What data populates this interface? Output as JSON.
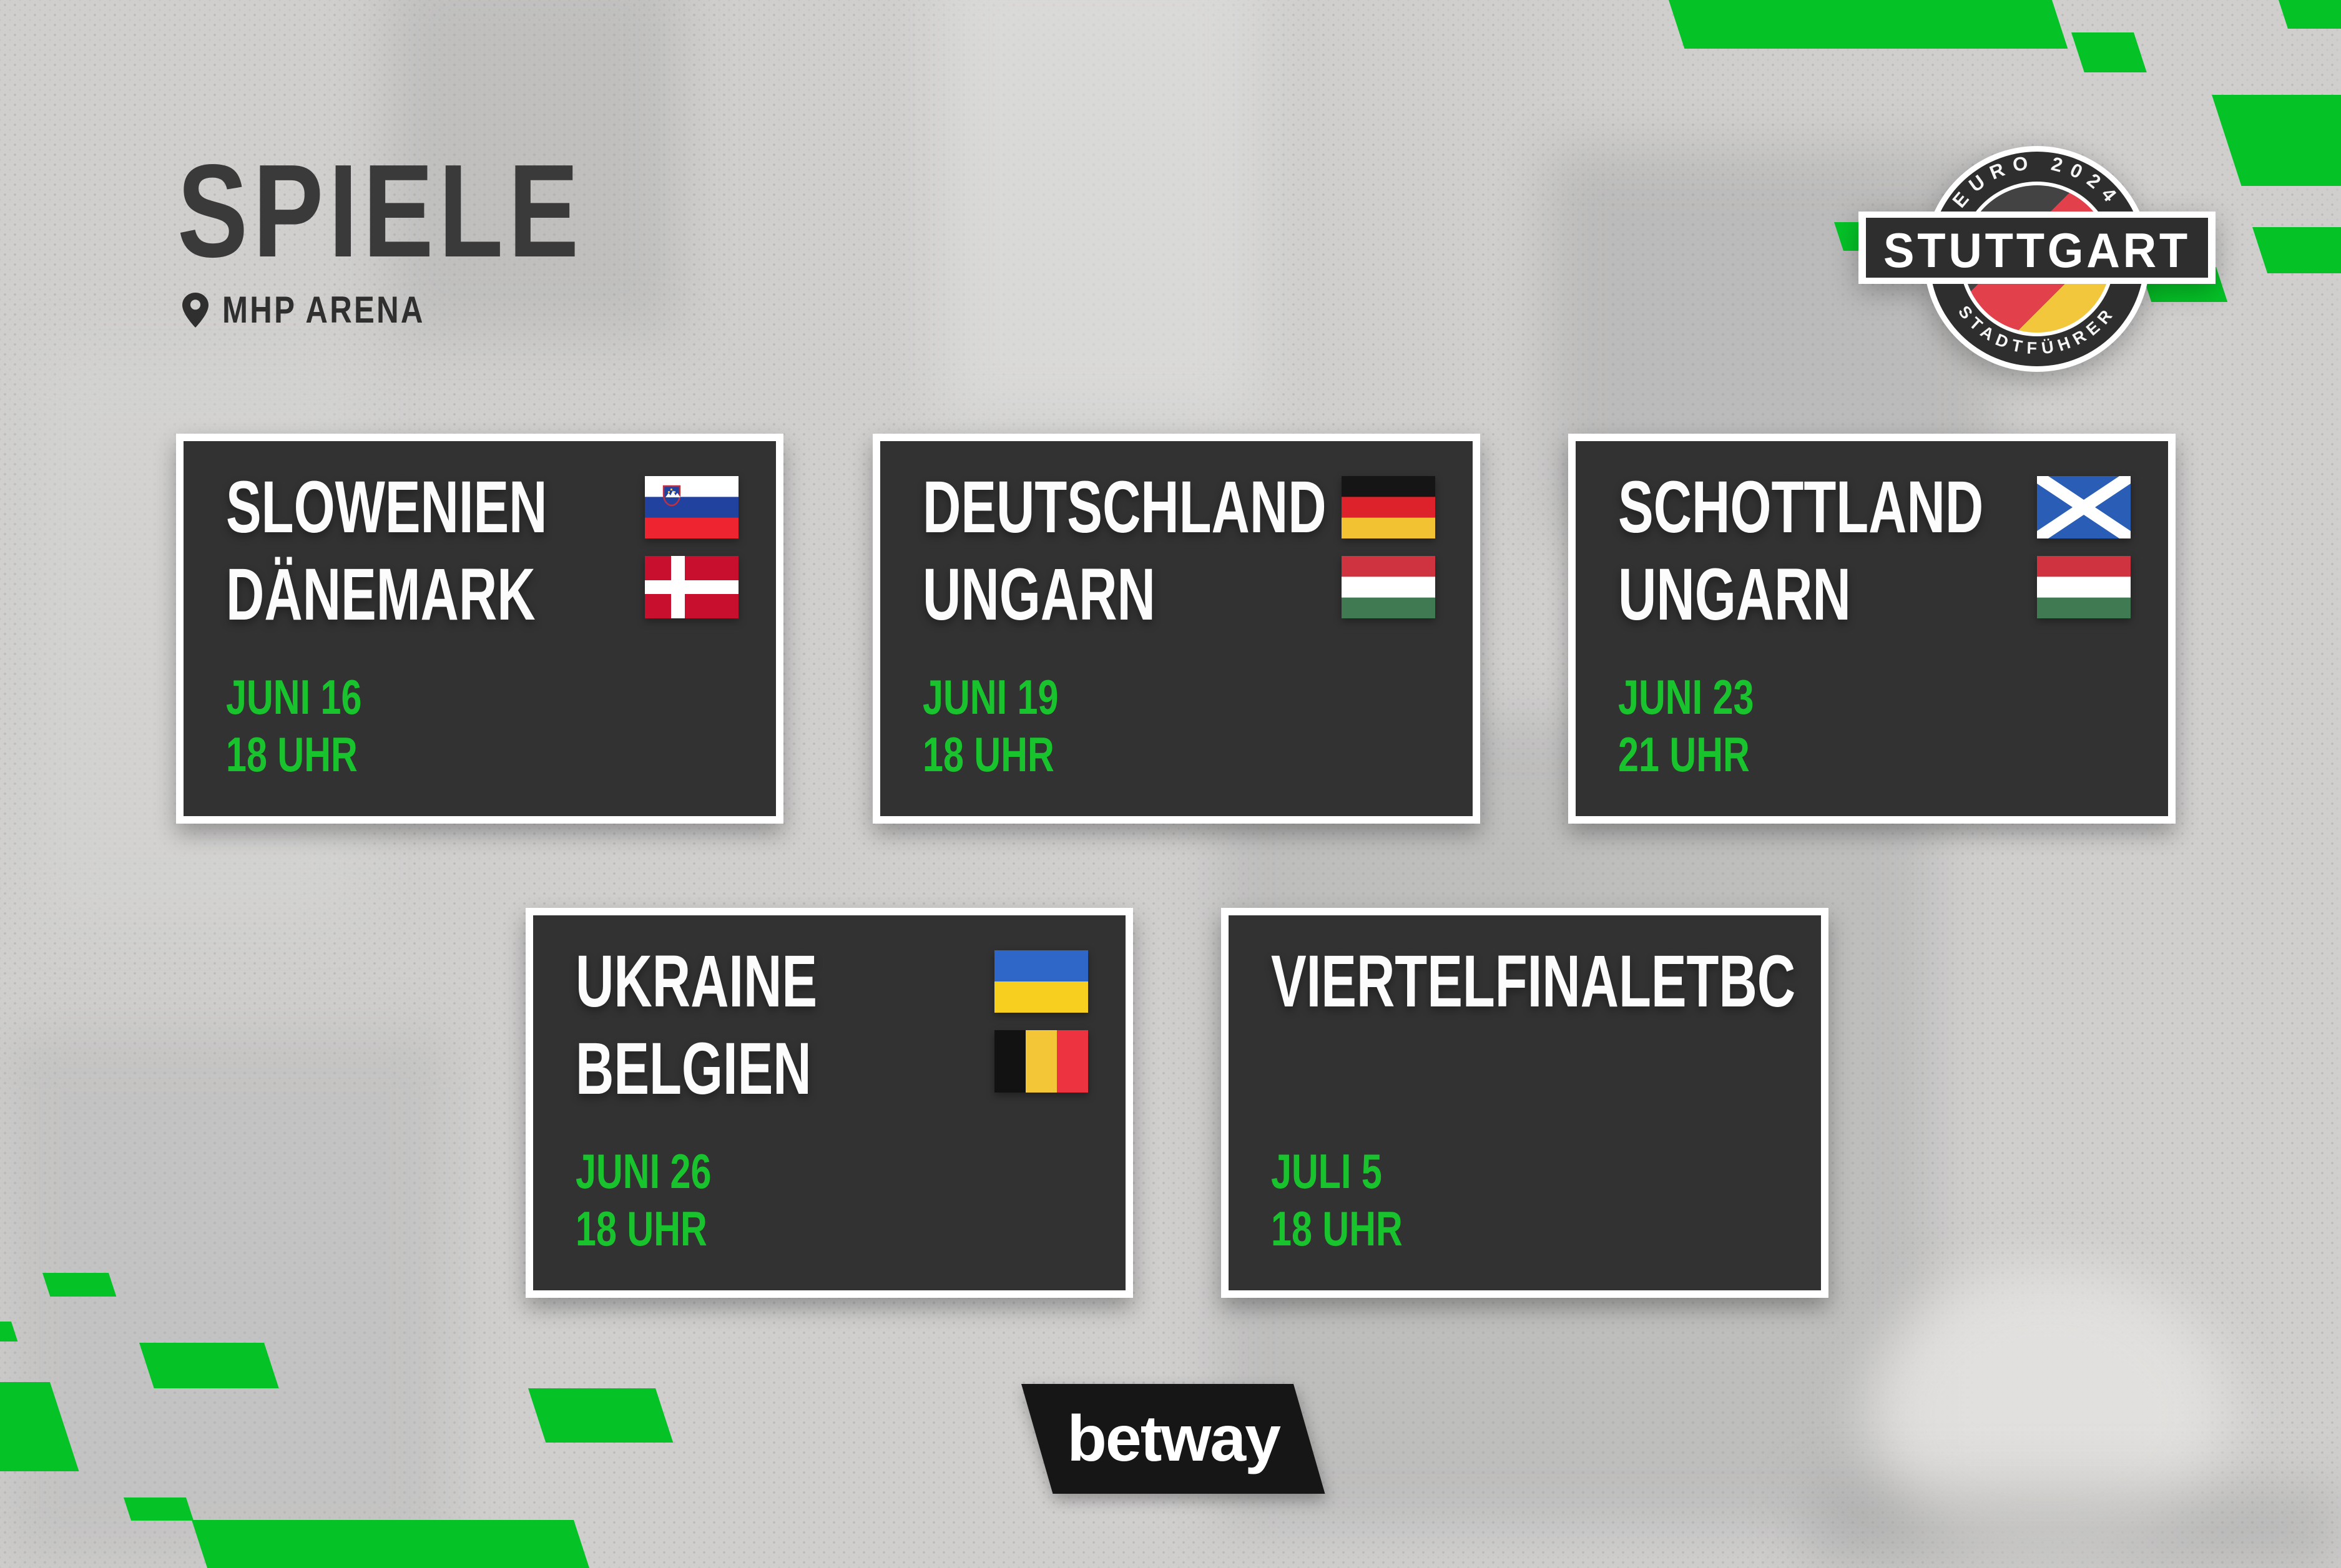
{
  "header": {
    "title": "SPIELE",
    "venue": "MHP ARENA"
  },
  "badge": {
    "arc_top": "EURO 2024",
    "city": "STUTTGART",
    "arc_bottom": "STADTFÜHRER"
  },
  "matches": [
    {
      "home": "SLOWENIEN",
      "away": "DÄNEMARK",
      "home_flag": "slovenia",
      "away_flag": "denmark",
      "date": "JUNI 16",
      "time": "18 UHR"
    },
    {
      "home": "DEUTSCHLAND",
      "away": "UNGARN",
      "home_flag": "germany",
      "away_flag": "hungary",
      "date": "JUNI 19",
      "time": "18 UHR"
    },
    {
      "home": "SCHOTTLAND",
      "away": "UNGARN",
      "home_flag": "scotland",
      "away_flag": "hungary",
      "date": "JUNI 23",
      "time": "21 UHR"
    },
    {
      "home": "UKRAINE",
      "away": "BELGIEN",
      "home_flag": "ukraine",
      "away_flag": "belgium",
      "date": "JUNI 26",
      "time": "18 UHR"
    },
    {
      "home": "VIERTELFINALETBC",
      "away": "",
      "home_flag": "",
      "away_flag": "",
      "date": "JULI 5",
      "time": "18 UHR"
    }
  ],
  "sponsor": {
    "name": "betway"
  },
  "colors": {
    "accent_green": "#05c327",
    "text_green": "#18c32d",
    "card_bg": "#323232",
    "title_gray": "#3a3a3a",
    "badge_dark": "#2e2e2e",
    "badge_flag": {
      "dark": "#434343",
      "red": "#e2404a",
      "yellow": "#f2c73b"
    }
  },
  "flags": {
    "slovenia": {
      "type": "h",
      "stripes": [
        "#ffffff",
        "#2242a0",
        "#ee2430"
      ],
      "emblem": true
    },
    "denmark": {
      "type": "nordic",
      "bg": "#c8102e",
      "cross": "#ffffff"
    },
    "germany": {
      "type": "h",
      "stripes": [
        "#151515",
        "#dd222c",
        "#f2c233"
      ]
    },
    "hungary": {
      "type": "h",
      "stripes": [
        "#cf333f",
        "#ffffff",
        "#3f7a52"
      ]
    },
    "scotland": {
      "type": "saltire",
      "bg": "#2a5db5",
      "saltire": "#ffffff"
    },
    "ukraine": {
      "type": "h",
      "stripes": [
        "#2f67c8",
        "#f7cf1e"
      ]
    },
    "belgium": {
      "type": "v",
      "stripes": [
        "#121212",
        "#f3c637",
        "#ee3340"
      ]
    }
  }
}
